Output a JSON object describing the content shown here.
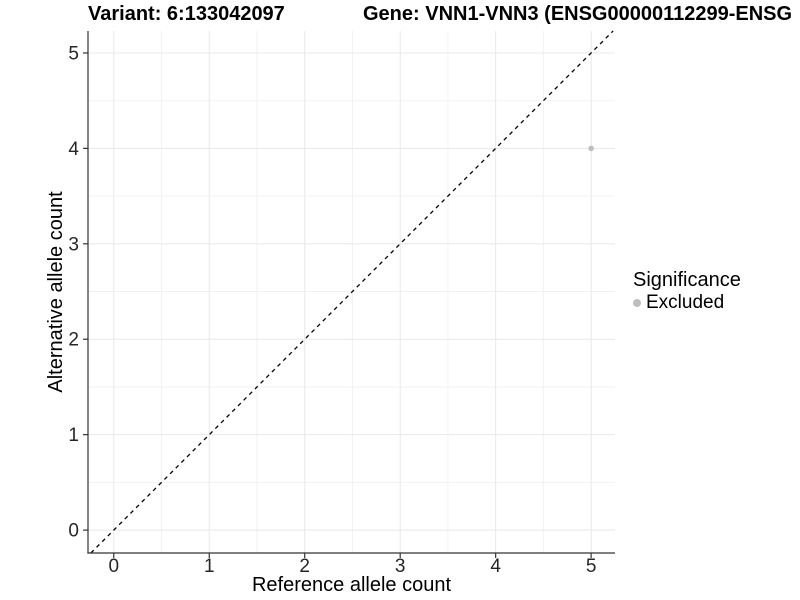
{
  "titles": {
    "variant": "Variant: 6:133042097",
    "gene": "Gene: VNN1-VNN3 (ENSG00000112299-ENSG"
  },
  "chart_data": {
    "type": "scatter",
    "title_left": "Variant: 6:133042097",
    "title_right": "Gene: VNN1-VNN3 (ENSG00000112299-ENSG",
    "xlabel": "Reference allele count",
    "ylabel": "Alternative allele count",
    "xticks": [
      0,
      1,
      2,
      3,
      4,
      5
    ],
    "yticks": [
      0,
      1,
      2,
      3,
      4,
      5
    ],
    "xlim": [
      -0.27,
      5.25
    ],
    "ylim": [
      -0.24,
      5.23
    ],
    "grid": {
      "major": true,
      "minor": true
    },
    "identity_line": {
      "slope": 1,
      "intercept": 0,
      "style": "dashed",
      "color": "#000000"
    },
    "series": [
      {
        "name": "Excluded",
        "color": "#bebebe",
        "points": [
          {
            "x": 5,
            "y": 4
          }
        ]
      }
    ],
    "legend": {
      "title": "Significance",
      "position": "right",
      "items": [
        {
          "label": "Excluded",
          "color": "#bebebe"
        }
      ]
    },
    "colors": {
      "grid_major": "#e8e8e8",
      "grid_minor": "#f2f2f2",
      "axis": "#333333",
      "tick_text": "#262626",
      "axis_title_text": "#000000"
    }
  }
}
